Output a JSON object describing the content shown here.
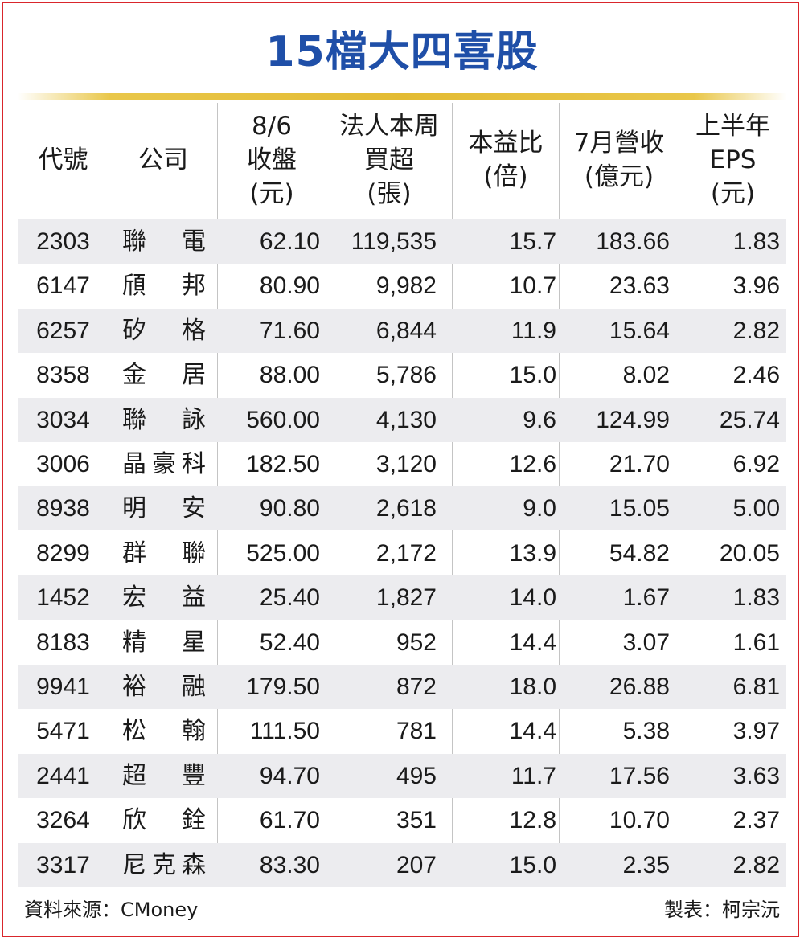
{
  "chart_data": {
    "type": "table",
    "title": "15檔大四喜股",
    "columns": [
      {
        "key": "code",
        "label_lines": [
          "代號"
        ]
      },
      {
        "key": "company",
        "label_lines": [
          "公司"
        ]
      },
      {
        "key": "close",
        "label_lines": [
          "8/6",
          "收盤",
          "(元)"
        ]
      },
      {
        "key": "net_buy",
        "label_lines": [
          "法人本周",
          "買超",
          "(張)"
        ]
      },
      {
        "key": "pe",
        "label_lines": [
          "本益比",
          "(倍)"
        ]
      },
      {
        "key": "revenue",
        "label_lines": [
          "7月營收",
          "(億元)"
        ]
      },
      {
        "key": "eps",
        "label_lines": [
          "上半年",
          "EPS",
          "(元)"
        ]
      }
    ],
    "rows": [
      {
        "code": "2303",
        "company": [
          "聯",
          "電"
        ],
        "close": "62.10",
        "net_buy": "119,535",
        "pe": "15.7",
        "revenue": "183.66",
        "eps": "1.83"
      },
      {
        "code": "6147",
        "company": [
          "頎",
          "邦"
        ],
        "close": "80.90",
        "net_buy": "9,982",
        "pe": "10.7",
        "revenue": "23.63",
        "eps": "3.96"
      },
      {
        "code": "6257",
        "company": [
          "矽",
          "格"
        ],
        "close": "71.60",
        "net_buy": "6,844",
        "pe": "11.9",
        "revenue": "15.64",
        "eps": "2.82"
      },
      {
        "code": "8358",
        "company": [
          "金",
          "居"
        ],
        "close": "88.00",
        "net_buy": "5,786",
        "pe": "15.0",
        "revenue": "8.02",
        "eps": "2.46"
      },
      {
        "code": "3034",
        "company": [
          "聯",
          "詠"
        ],
        "close": "560.00",
        "net_buy": "4,130",
        "pe": "9.6",
        "revenue": "124.99",
        "eps": "25.74"
      },
      {
        "code": "3006",
        "company": [
          "晶",
          "豪",
          "科"
        ],
        "close": "182.50",
        "net_buy": "3,120",
        "pe": "12.6",
        "revenue": "21.70",
        "eps": "6.92"
      },
      {
        "code": "8938",
        "company": [
          "明",
          "安"
        ],
        "close": "90.80",
        "net_buy": "2,618",
        "pe": "9.0",
        "revenue": "15.05",
        "eps": "5.00"
      },
      {
        "code": "8299",
        "company": [
          "群",
          "聯"
        ],
        "close": "525.00",
        "net_buy": "2,172",
        "pe": "13.9",
        "revenue": "54.82",
        "eps": "20.05"
      },
      {
        "code": "1452",
        "company": [
          "宏",
          "益"
        ],
        "close": "25.40",
        "net_buy": "1,827",
        "pe": "14.0",
        "revenue": "1.67",
        "eps": "1.83"
      },
      {
        "code": "8183",
        "company": [
          "精",
          "星"
        ],
        "close": "52.40",
        "net_buy": "952",
        "pe": "14.4",
        "revenue": "3.07",
        "eps": "1.61"
      },
      {
        "code": "9941",
        "company": [
          "裕",
          "融"
        ],
        "close": "179.50",
        "net_buy": "872",
        "pe": "18.0",
        "revenue": "26.88",
        "eps": "6.81"
      },
      {
        "code": "5471",
        "company": [
          "松",
          "翰"
        ],
        "close": "111.50",
        "net_buy": "781",
        "pe": "14.4",
        "revenue": "5.38",
        "eps": "3.97"
      },
      {
        "code": "2441",
        "company": [
          "超",
          "豐"
        ],
        "close": "94.70",
        "net_buy": "495",
        "pe": "11.7",
        "revenue": "17.56",
        "eps": "3.63"
      },
      {
        "code": "3264",
        "company": [
          "欣",
          "銓"
        ],
        "close": "61.70",
        "net_buy": "351",
        "pe": "12.8",
        "revenue": "10.70",
        "eps": "2.37"
      },
      {
        "code": "3317",
        "company": [
          "尼",
          "克",
          "森"
        ],
        "close": "83.30",
        "net_buy": "207",
        "pe": "15.0",
        "revenue": "2.35",
        "eps": "2.82"
      }
    ]
  },
  "footer": {
    "source": "資料來源：CMoney",
    "maker": "製表：柯宗沅"
  },
  "colors": {
    "title": "#1f4fa8",
    "border": "#d9262c",
    "gold_rule": "#e3bb33",
    "row_shade": "#ececef"
  }
}
